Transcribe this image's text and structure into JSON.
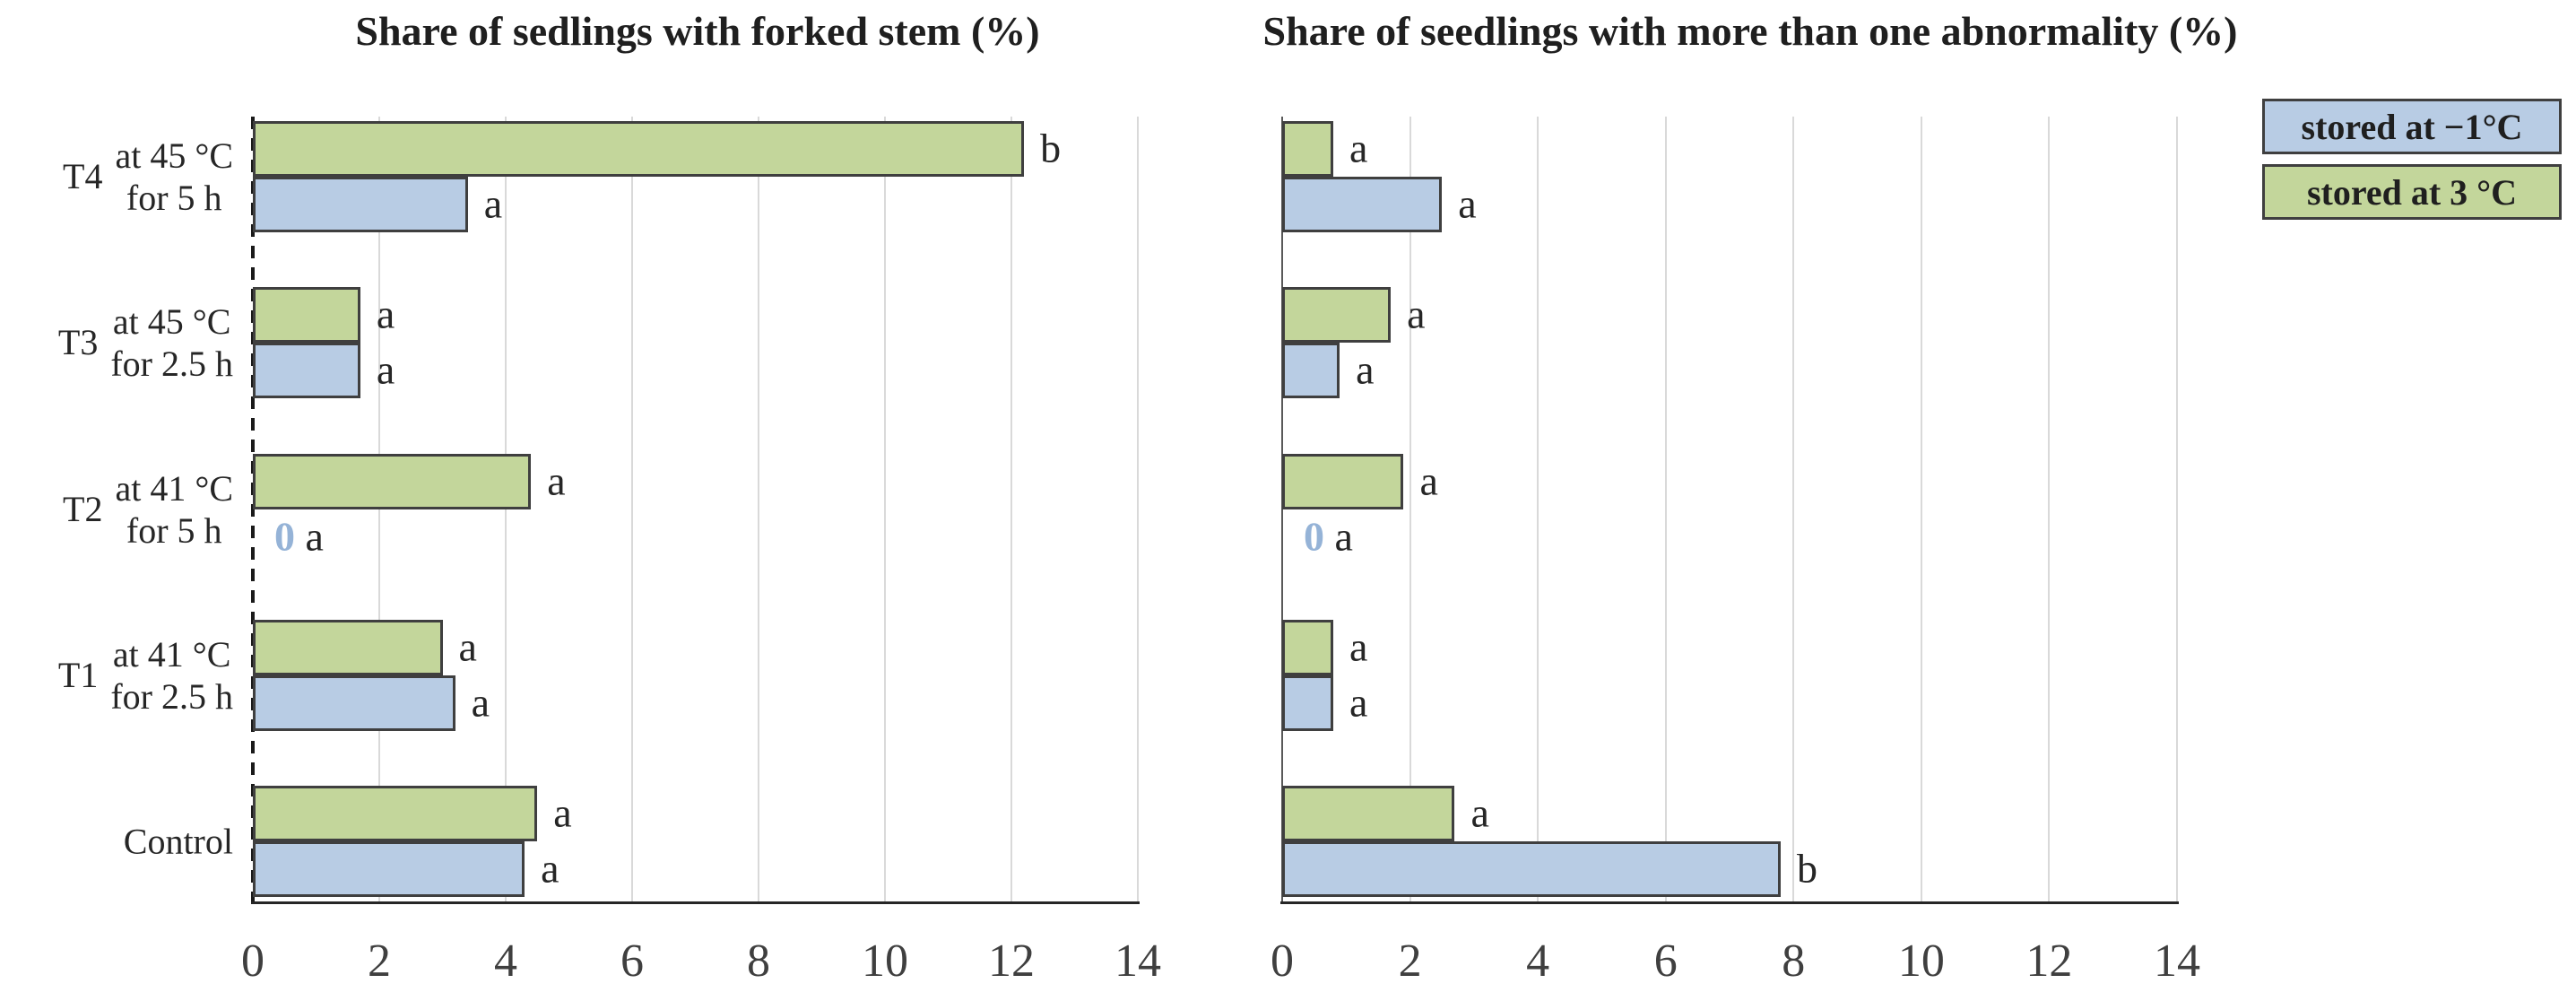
{
  "figure": {
    "background": "#ffffff",
    "text_color": "#262626",
    "gridline_color": "#d9d9d9",
    "bar_border_color": "#3f3f3f",
    "zero_label_color": "#95b3d7"
  },
  "legend": {
    "position": "top-right",
    "items": [
      {
        "label": "stored at −1°C",
        "color": "#b8cce4"
      },
      {
        "label": "stored at 3 °C",
        "color": "#c3d69b"
      }
    ]
  },
  "chart_data": [
    {
      "type": "bar",
      "orientation": "horizontal",
      "title": "Share of sedlings with forked stem (%)",
      "xlabel": "",
      "ylabel": "",
      "xlim": [
        0,
        14
      ],
      "xticks": [
        0,
        2,
        4,
        6,
        8,
        10,
        12,
        14
      ],
      "grid": "vertical gridlines every 2 units",
      "yaxis_line": "dashed",
      "show_category_labels": true,
      "categories": [
        {
          "id": "T4",
          "lines": [
            "at 45 °C",
            "for 5 h"
          ]
        },
        {
          "id": "T3",
          "lines": [
            "at 45 °C",
            "for 2.5 h"
          ]
        },
        {
          "id": "T2",
          "lines": [
            "at 41 °C",
            "for 5 h"
          ]
        },
        {
          "id": "T1",
          "lines": [
            "at 41 °C",
            "for 2.5 h"
          ]
        },
        {
          "id": "",
          "lines": [
            "Control"
          ]
        }
      ],
      "series": [
        {
          "name": "stored at 3 °C",
          "color": "#c3d69b",
          "row": "top",
          "values": [
            12.2,
            1.7,
            4.4,
            3.0,
            4.5
          ],
          "sig_labels": [
            "b",
            "a",
            "a",
            "a",
            "a"
          ]
        },
        {
          "name": "stored at −1°C",
          "color": "#b8cce4",
          "row": "bottom",
          "values": [
            3.4,
            1.7,
            0,
            3.2,
            4.3
          ],
          "sig_labels": [
            "a",
            "a",
            "a",
            "a",
            "a"
          ]
        }
      ]
    },
    {
      "type": "bar",
      "orientation": "horizontal",
      "title": "Share of seedlings with more than one abnormality (%)",
      "xlabel": "",
      "ylabel": "",
      "xlim": [
        0,
        14
      ],
      "xticks": [
        0,
        2,
        4,
        6,
        8,
        10,
        12,
        14
      ],
      "grid": "vertical gridlines every 2 units",
      "yaxis_line": "solid",
      "show_category_labels": false,
      "categories": [
        {
          "id": "T4",
          "lines": [
            "at 45 °C",
            "for 5 h"
          ]
        },
        {
          "id": "T3",
          "lines": [
            "at 45 °C",
            "for 2.5 h"
          ]
        },
        {
          "id": "T2",
          "lines": [
            "at 41 °C",
            "for 5 h"
          ]
        },
        {
          "id": "T1",
          "lines": [
            "at 41 °C",
            "for 2.5 h"
          ]
        },
        {
          "id": "",
          "lines": [
            "Control"
          ]
        }
      ],
      "series": [
        {
          "name": "stored at 3 °C",
          "color": "#c3d69b",
          "row": "top",
          "values": [
            0.8,
            1.7,
            1.9,
            0.8,
            2.7
          ],
          "sig_labels": [
            "a",
            "a",
            "a",
            "a",
            "a"
          ]
        },
        {
          "name": "stored at −1°C",
          "color": "#b8cce4",
          "row": "bottom",
          "values": [
            2.5,
            0.9,
            0,
            0.8,
            7.8
          ],
          "sig_labels": [
            "a",
            "a",
            "a",
            "a",
            "b"
          ]
        }
      ]
    }
  ]
}
